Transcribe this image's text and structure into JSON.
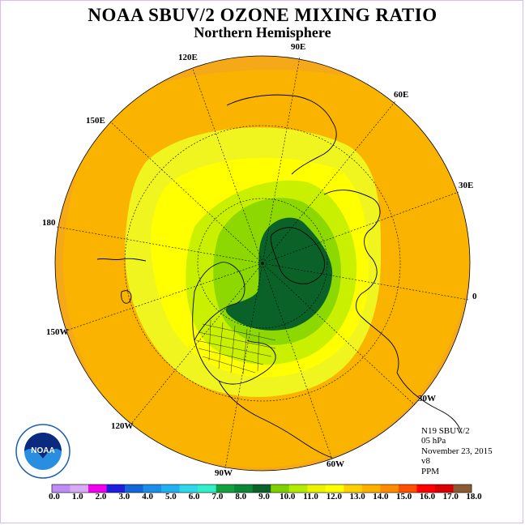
{
  "title": "NOAA SBUV/2 OZONE MIXING RATIO",
  "subtitle": "Northern Hemisphere",
  "longitude_labels": {
    "e90": "90E",
    "e120": "120E",
    "e60": "60E",
    "e150": "150E",
    "e30": "30E",
    "d180": "180",
    "d0": "0",
    "w150": "150W",
    "w30": "30W",
    "w120": "120W",
    "w60": "60W",
    "w90": "90W"
  },
  "info": {
    "satellite": "N19 SBUV/2",
    "level": "05 hPa",
    "date": "November 23, 2015",
    "version": "v8",
    "units": "PPM"
  },
  "colorbar": {
    "colors": [
      "#bf8cf5",
      "#d9aaf5",
      "#ef00ef",
      "#1e1ee0",
      "#1266d8",
      "#1a8ee8",
      "#22b0f0",
      "#2ed8e8",
      "#30f0c8",
      "#12a040",
      "#0a8838",
      "#0a6228",
      "#7fd000",
      "#b4ec00",
      "#ecf200",
      "#ffff00",
      "#ffd000",
      "#ffb000",
      "#ff8c00",
      "#ff5000",
      "#ff0000",
      "#d80000",
      "#8c5a30"
    ],
    "labels": [
      "0.0",
      "1.0",
      "2.0",
      "3.0",
      "4.0",
      "5.0",
      "6.0",
      "7.0",
      "8.0",
      "9.0",
      "10.0",
      "11.0",
      "12.0",
      "13.0",
      "14.0",
      "15.0",
      "16.0",
      "17.0",
      "18.0"
    ]
  },
  "field_colors": {
    "outer": "#f5a818",
    "ring_orange": "#fab400",
    "yellow_light": "#f0f520",
    "yellow": "#ffff00",
    "green_light": "#c8f000",
    "green_mid": "#8cd800",
    "green_dark": "#0a6228"
  },
  "logo_text": "NOAA"
}
